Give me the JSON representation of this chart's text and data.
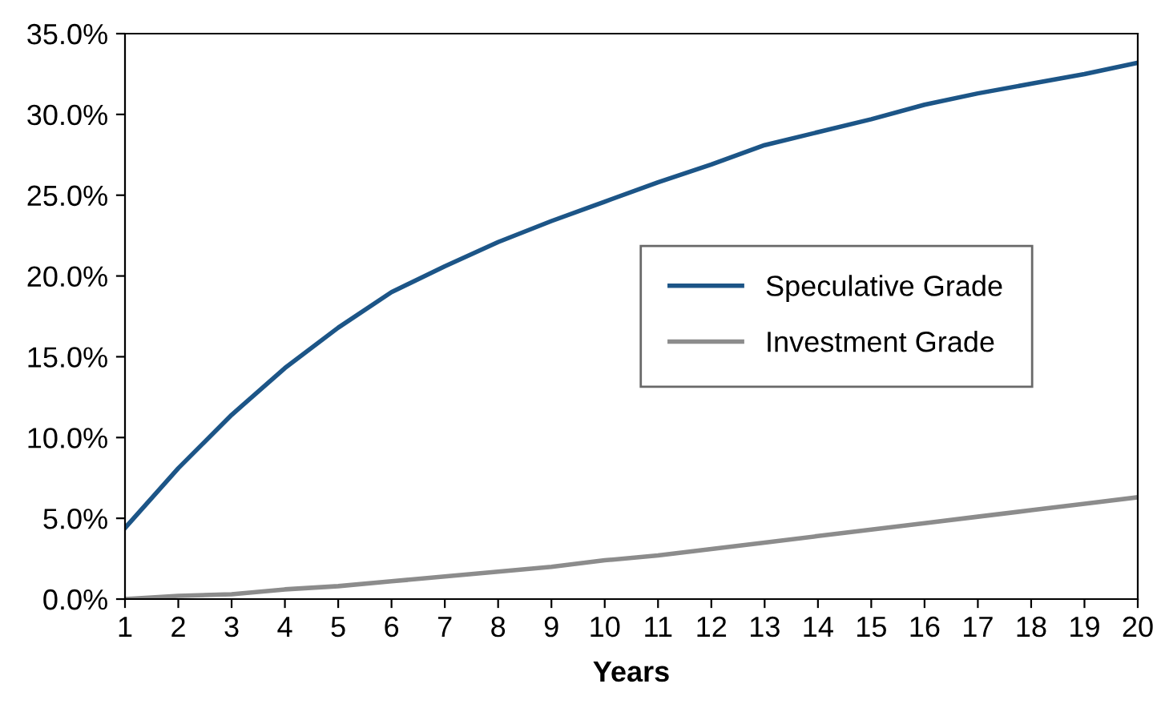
{
  "chart_data": {
    "type": "line",
    "xlabel": "Years",
    "x": [
      1,
      2,
      3,
      4,
      5,
      6,
      7,
      8,
      9,
      10,
      11,
      12,
      13,
      14,
      15,
      16,
      17,
      18,
      19,
      20
    ],
    "series": [
      {
        "name": "Speculative Grade",
        "color": "#1c5587",
        "values": [
          4.4,
          8.1,
          11.4,
          14.3,
          16.8,
          19.0,
          20.6,
          22.1,
          23.4,
          24.6,
          25.8,
          26.9,
          28.1,
          28.9,
          29.7,
          30.6,
          31.3,
          31.9,
          32.5,
          33.2
        ]
      },
      {
        "name": "Investment Grade",
        "color": "#8c8c8c",
        "values": [
          0.0,
          0.2,
          0.3,
          0.6,
          0.8,
          1.1,
          1.4,
          1.7,
          2.0,
          2.4,
          2.7,
          3.1,
          3.5,
          3.9,
          4.3,
          4.7,
          5.1,
          5.5,
          5.9,
          6.3
        ]
      }
    ],
    "xlim": [
      1,
      20
    ],
    "xticks": [
      1,
      2,
      3,
      4,
      5,
      6,
      7,
      8,
      9,
      10,
      11,
      12,
      13,
      14,
      15,
      16,
      17,
      18,
      19,
      20
    ],
    "ylim": [
      0,
      35
    ],
    "yticks": [
      {
        "value": 0,
        "label": "0.0%"
      },
      {
        "value": 5,
        "label": "5.0%"
      },
      {
        "value": 10,
        "label": "10.0%"
      },
      {
        "value": 15,
        "label": "15.0%"
      },
      {
        "value": 20,
        "label": "20.0%"
      },
      {
        "value": 25,
        "label": "25.0%"
      },
      {
        "value": 30,
        "label": "30.0%"
      },
      {
        "value": 35,
        "label": "35.0%"
      }
    ],
    "grid": false,
    "legend": "right",
    "marker": "none",
    "line_style": "solid"
  }
}
